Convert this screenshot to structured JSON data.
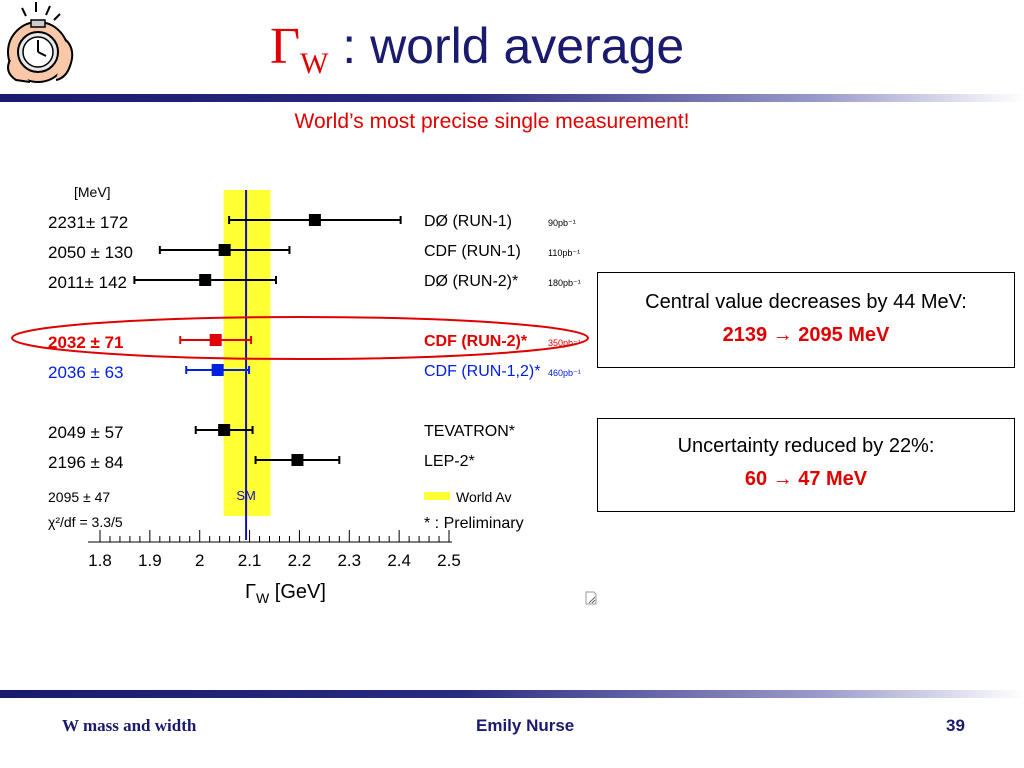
{
  "slide": {
    "title_symbol": "Γ",
    "title_subscript": "W",
    "title_text": " : world average",
    "subtitle": "World’s most precise single measurement!"
  },
  "chart_data": {
    "type": "scatter",
    "xlabel_symbol": "Γ",
    "xlabel_sub": "W",
    "xlabel_rest": " [GeV]",
    "unit_label": "[MeV]",
    "xlim": [
      1.8,
      2.5
    ],
    "xticks": [
      "1.8",
      "1.9",
      "2",
      "2.1",
      "2.2",
      "2.3",
      "2.4",
      "2.5"
    ],
    "world_average_band": [
      2.048,
      2.142
    ],
    "sm_value": 2.093,
    "sm_label": "SM",
    "measurements": [
      {
        "value_label": "2231± 172",
        "name": "DØ (RUN-1)",
        "lumi": "90pb⁻¹",
        "x": 2.231,
        "xerr_lo": 0.172,
        "xerr_hi": 0.172,
        "color": "#000000"
      },
      {
        "value_label": "2050 ± 130",
        "name": "CDF (RUN-1)",
        "lumi": "110pb⁻¹",
        "x": 2.05,
        "xerr_lo": 0.13,
        "xerr_hi": 0.13,
        "color": "#000000"
      },
      {
        "value_label": "2011± 142",
        "name": "DØ (RUN-2)*",
        "lumi": "180pb⁻¹",
        "x": 2.011,
        "xerr_lo": 0.142,
        "xerr_hi": 0.142,
        "color": "#000000"
      },
      {
        "value_label": "2032 ± 71",
        "name": "CDF (RUN-2)*",
        "lumi": "350pb⁻¹",
        "x": 2.032,
        "xerr_lo": 0.071,
        "xerr_hi": 0.071,
        "color": "#e00000"
      },
      {
        "value_label": "2036 ± 63",
        "name": "CDF (RUN-1,2)*",
        "lumi": "460pb⁻¹",
        "x": 2.036,
        "xerr_lo": 0.063,
        "xerr_hi": 0.063,
        "color": "#0020e0"
      },
      {
        "value_label": "2049 ± 57",
        "name": "TEVATRON*",
        "lumi": "",
        "x": 2.049,
        "xerr_lo": 0.057,
        "xerr_hi": 0.057,
        "color": "#000000"
      },
      {
        "value_label": "2196 ± 84",
        "name": "LEP-2*",
        "lumi": "",
        "x": 2.196,
        "xerr_lo": 0.084,
        "xerr_hi": 0.084,
        "color": "#000000"
      }
    ],
    "average_label": "2095 ± 47",
    "chi2_label": "χ²/df = 3.3/5",
    "legend_world_av": "World Av",
    "legend_preliminary": "* : Preliminary",
    "highlighted_row": 3,
    "colors": {
      "band": "#ffff33",
      "sm_line": "#1010c0",
      "highlight": "#e00000"
    }
  },
  "box1": {
    "line1": "Central value decreases by 44 MeV:",
    "line2_from": "2139",
    "arrow": "→",
    "line2_to": "2095 MeV"
  },
  "box2": {
    "line1": "Uncertainty reduced by 22%:",
    "line2_from": "60",
    "arrow": "→",
    "line2_to": "47 MeV"
  },
  "footer": {
    "left": "W mass and width",
    "center": "Emily Nurse",
    "right": "39"
  }
}
